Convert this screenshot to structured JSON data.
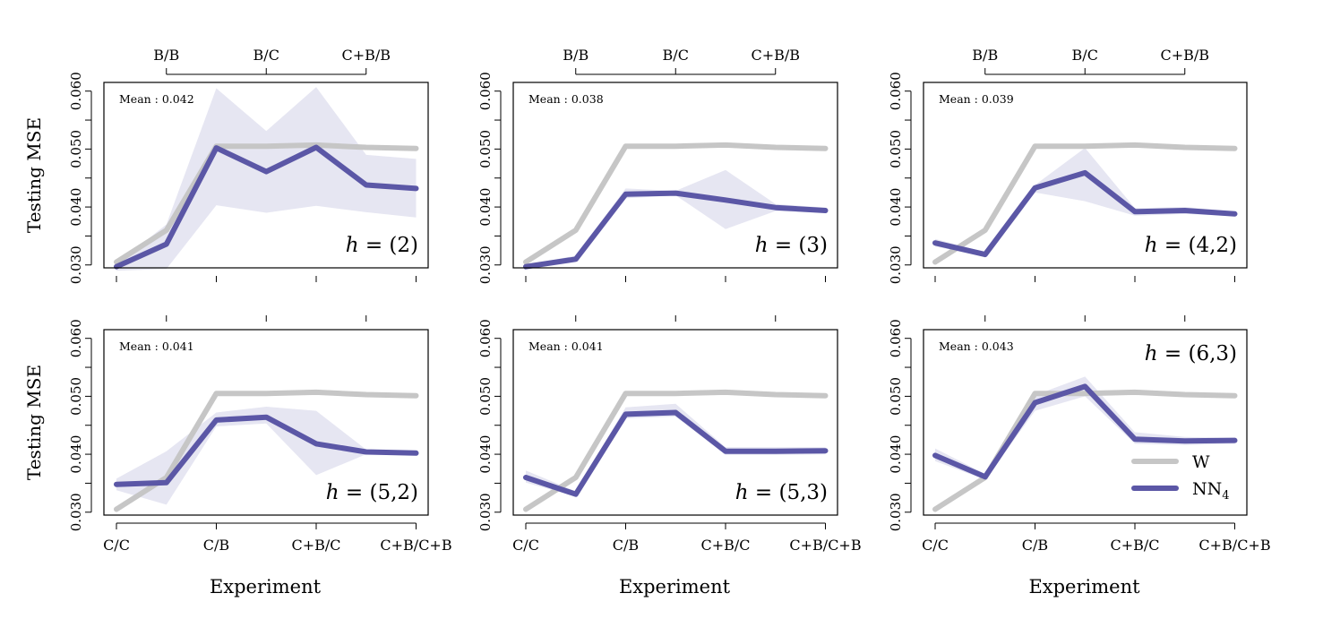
{
  "axis_labels": {
    "ylabel": "Testing MSE",
    "xlabel": "Experiment"
  },
  "legend": [
    {
      "name": "W",
      "color": "#c6c6c6"
    },
    {
      "name": "NN",
      "sub": "4",
      "color": "#5b57a6"
    }
  ],
  "colors": {
    "W": "#c6c6c6",
    "NN": "#5b57a6",
    "band": "#e6e6f2"
  },
  "chart_data": [
    {
      "type": "line",
      "panel_label": "h = (2)",
      "h_value": "(2)",
      "mean_text": "Mean : 0.042",
      "x_bottom_ticks": [
        "C/C",
        "C/B",
        "C+B/C",
        "C+B/C+B"
      ],
      "x_top_ticks": [
        "B/B",
        "B/C",
        "C+B/B"
      ],
      "x_order": [
        "C/C",
        "B/B",
        "C/B",
        "B/C",
        "C+B/C",
        "C+B/B",
        "C+B/C+B"
      ],
      "yticks": [
        "0.030",
        "0.040",
        "0.050",
        "0.060"
      ],
      "ylim": [
        0.0295,
        0.0615
      ],
      "series": [
        {
          "name": "W",
          "values": [
            0.0305,
            0.036,
            0.0505,
            0.0505,
            0.0507,
            0.0503,
            0.0501
          ]
        },
        {
          "name": "NN4",
          "values": [
            0.0297,
            0.0336,
            0.0502,
            0.0461,
            0.0503,
            0.0438,
            0.0432
          ],
          "band_upper": [
            0.0302,
            0.037,
            0.0605,
            0.0531,
            0.0607,
            0.049,
            0.0483
          ],
          "band_lower": [
            0.029,
            0.0293,
            0.0403,
            0.039,
            0.0402,
            0.0391,
            0.0382
          ]
        }
      ]
    },
    {
      "type": "line",
      "panel_label": "h = (3)",
      "h_value": "(3)",
      "mean_text": "Mean : 0.038",
      "x_bottom_ticks": [
        "C/C",
        "C/B",
        "C+B/C",
        "C+B/C+B"
      ],
      "x_top_ticks": [
        "B/B",
        "B/C",
        "C+B/B"
      ],
      "x_order": [
        "C/C",
        "B/B",
        "C/B",
        "B/C",
        "C+B/C",
        "C+B/B",
        "C+B/C+B"
      ],
      "yticks": [
        "0.030",
        "0.040",
        "0.050",
        "0.060"
      ],
      "ylim": [
        0.0295,
        0.0615
      ],
      "series": [
        {
          "name": "W",
          "values": [
            0.0305,
            0.036,
            0.0505,
            0.0505,
            0.0507,
            0.0503,
            0.0501
          ]
        },
        {
          "name": "NN4",
          "values": [
            0.0297,
            0.031,
            0.0422,
            0.0424,
            0.0412,
            0.0399,
            0.0394
          ],
          "band_upper": [
            0.03,
            0.0316,
            0.0432,
            0.0428,
            0.0464,
            0.0405,
            0.0399
          ],
          "band_lower": [
            0.0294,
            0.0306,
            0.0415,
            0.042,
            0.0362,
            0.0393,
            0.039
          ]
        }
      ]
    },
    {
      "type": "line",
      "panel_label": "h = (4,2)",
      "h_value": "(4,2)",
      "mean_text": "Mean : 0.039",
      "x_bottom_ticks": [
        "C/C",
        "C/B",
        "C+B/C",
        "C+B/C+B"
      ],
      "x_top_ticks": [
        "B/B",
        "B/C",
        "C+B/B"
      ],
      "x_order": [
        "C/C",
        "B/B",
        "C/B",
        "B/C",
        "C+B/C",
        "C+B/B",
        "C+B/C+B"
      ],
      "yticks": [
        "0.030",
        "0.040",
        "0.050",
        "0.060"
      ],
      "ylim": [
        0.0295,
        0.0615
      ],
      "series": [
        {
          "name": "W",
          "values": [
            0.0305,
            0.036,
            0.0505,
            0.0505,
            0.0507,
            0.0503,
            0.0501
          ]
        },
        {
          "name": "NN4",
          "values": [
            0.0338,
            0.0318,
            0.0433,
            0.0459,
            0.0392,
            0.0394,
            0.0388
          ],
          "band_upper": [
            0.0345,
            0.0322,
            0.0438,
            0.0502,
            0.0398,
            0.04,
            0.0392
          ],
          "band_lower": [
            0.0332,
            0.0314,
            0.0425,
            0.041,
            0.0385,
            0.0388,
            0.0384
          ]
        }
      ]
    },
    {
      "type": "line",
      "panel_label": "h = (5,2)",
      "h_value": "(5,2)",
      "mean_text": "Mean : 0.041",
      "x_bottom_ticks": [
        "C/C",
        "C/B",
        "C+B/C",
        "C+B/C+B"
      ],
      "x_top_ticks": [],
      "x_order": [
        "C/C",
        "B/B",
        "C/B",
        "B/C",
        "C+B/C",
        "C+B/B",
        "C+B/C+B"
      ],
      "yticks": [
        "0.030",
        "0.040",
        "0.050",
        "0.060"
      ],
      "ylim": [
        0.0295,
        0.0615
      ],
      "series": [
        {
          "name": "W",
          "values": [
            0.0305,
            0.036,
            0.0505,
            0.0505,
            0.0507,
            0.0503,
            0.0501
          ]
        },
        {
          "name": "NN4",
          "values": [
            0.0348,
            0.0351,
            0.0459,
            0.0464,
            0.0418,
            0.0404,
            0.0402
          ],
          "band_upper": [
            0.0358,
            0.0405,
            0.0472,
            0.0482,
            0.0475,
            0.0408,
            0.0405
          ],
          "band_lower": [
            0.0338,
            0.0313,
            0.0448,
            0.0453,
            0.0364,
            0.04,
            0.0399
          ]
        }
      ]
    },
    {
      "type": "line",
      "panel_label": "h = (5,3)",
      "h_value": "(5,3)",
      "mean_text": "Mean : 0.041",
      "x_bottom_ticks": [
        "C/C",
        "C/B",
        "C+B/C",
        "C+B/C+B"
      ],
      "x_top_ticks": [],
      "x_order": [
        "C/C",
        "B/B",
        "C/B",
        "B/C",
        "C+B/C",
        "C+B/B",
        "C+B/C+B"
      ],
      "yticks": [
        "0.030",
        "0.040",
        "0.050",
        "0.060"
      ],
      "ylim": [
        0.0295,
        0.0615
      ],
      "series": [
        {
          "name": "W",
          "values": [
            0.0305,
            0.036,
            0.0505,
            0.0505,
            0.0507,
            0.0503,
            0.0501
          ]
        },
        {
          "name": "NN4",
          "values": [
            0.036,
            0.0331,
            0.0469,
            0.0472,
            0.0405,
            0.0405,
            0.0406
          ],
          "band_upper": [
            0.0372,
            0.0336,
            0.0481,
            0.0487,
            0.0412,
            0.0412,
            0.0412
          ],
          "band_lower": [
            0.0351,
            0.0327,
            0.0462,
            0.0465,
            0.0399,
            0.0399,
            0.04
          ]
        }
      ]
    },
    {
      "type": "line",
      "panel_label": "h = (6,3)",
      "h_value": "(6,3)",
      "mean_text": "Mean : 0.043",
      "x_bottom_ticks": [
        "C/C",
        "C/B",
        "C+B/C",
        "C+B/C+B"
      ],
      "x_top_ticks": [],
      "x_order": [
        "C/C",
        "B/B",
        "C/B",
        "B/C",
        "C+B/C",
        "C+B/B",
        "C+B/C+B"
      ],
      "yticks": [
        "0.030",
        "0.040",
        "0.050",
        "0.060"
      ],
      "ylim": [
        0.0295,
        0.0615
      ],
      "series": [
        {
          "name": "W",
          "values": [
            0.0305,
            0.036,
            0.0505,
            0.0505,
            0.0507,
            0.0503,
            0.0501
          ]
        },
        {
          "name": "NN4",
          "values": [
            0.0398,
            0.0361,
            0.0489,
            0.0517,
            0.0426,
            0.0423,
            0.0424
          ],
          "band_upper": [
            0.041,
            0.0366,
            0.0502,
            0.0534,
            0.0438,
            0.043,
            0.0428
          ],
          "band_lower": [
            0.0388,
            0.0356,
            0.0475,
            0.05,
            0.0418,
            0.0416,
            0.0418
          ]
        }
      ]
    }
  ]
}
